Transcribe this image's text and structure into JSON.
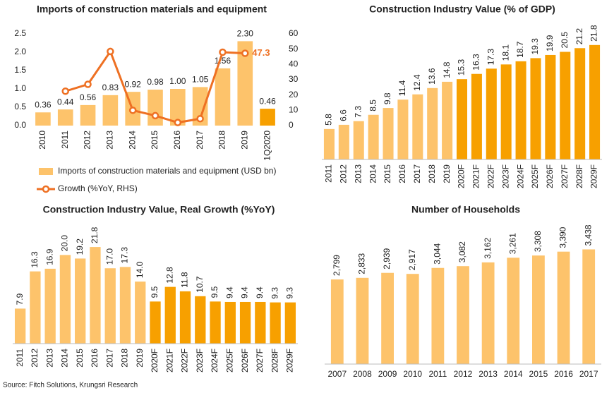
{
  "chart_data": [
    {
      "type": "bar_line",
      "title": "Imports of construction materials and equipment",
      "categories": [
        "2010",
        "2011",
        "2012",
        "2013",
        "2014",
        "2015",
        "2016",
        "2017",
        "2018",
        "2019",
        "1Q2020"
      ],
      "series": [
        {
          "name": "Imports of construction materials and equipment (USD bn)",
          "color": "#fdc36b",
          "colors": [
            "#fdc36b",
            "#fdc36b",
            "#fdc36b",
            "#fdc36b",
            "#fdc36b",
            "#fdc36b",
            "#fdc36b",
            "#fdc36b",
            "#fdc36b",
            "#fdc36b",
            "#f7a000"
          ],
          "values": [
            0.36,
            0.44,
            0.56,
            0.83,
            0.92,
            0.98,
            1.0,
            1.05,
            1.56,
            2.3,
            0.46
          ],
          "value_labels": [
            "0.36",
            "0.44",
            "0.56",
            "0.83",
            "0.92",
            "0.98",
            "1.00",
            "1.05",
            "1.56",
            "2.30",
            "0.46"
          ]
        },
        {
          "name": "Growth (%YoY, RHS)",
          "color": "#ee7023",
          "axis": "y2",
          "values": [
            null,
            22.5,
            27,
            48.5,
            10,
            6.5,
            2,
            4.5,
            48,
            47.3,
            null
          ],
          "value_labels": [
            null,
            null,
            null,
            null,
            null,
            null,
            null,
            null,
            null,
            "47.3",
            null
          ]
        }
      ],
      "ylim": [
        0,
        2.5
      ],
      "yticks": [
        {
          "value": 0,
          "label": "0.0"
        },
        0.5,
        {
          "value": 1,
          "label": "1.0"
        },
        1.5,
        {
          "value": 2,
          "label": "2.0"
        },
        2.5
      ],
      "y2lim": [
        0,
        60
      ],
      "y2ticks": [
        0,
        10,
        20,
        30,
        40,
        50,
        60
      ]
    },
    {
      "type": "bar",
      "title": "Construction Industry Value (% of GDP)",
      "categories": [
        "2011",
        "2012",
        "2013",
        "2014",
        "2015",
        "2016",
        "2017",
        "2018",
        "2019",
        "2020F",
        "2021F",
        "2022F",
        "2023F",
        "2024F",
        "2025F",
        "2026F",
        "2027F",
        "2028F",
        "2029F"
      ],
      "values": [
        5.8,
        6.6,
        7.3,
        8.5,
        9.8,
        11.4,
        12.4,
        13.6,
        14.8,
        15.3,
        16.3,
        17.3,
        18.1,
        18.7,
        19.3,
        19.9,
        20.5,
        21.2,
        21.8
      ],
      "colors": [
        "#fdc36b",
        "#fdc36b",
        "#fdc36b",
        "#fdc36b",
        "#fdc36b",
        "#fdc36b",
        "#fdc36b",
        "#fdc36b",
        "#fdc36b",
        "#f7a000",
        "#f7a000",
        "#f7a000",
        "#f7a000",
        "#f7a000",
        "#f7a000",
        "#f7a000",
        "#f7a000",
        "#f7a000",
        "#f7a000"
      ],
      "ylim": [
        0,
        25
      ]
    },
    {
      "type": "bar",
      "title": "Construction Industry Value, Real Growth (%YoY)",
      "categories": [
        "2011",
        "2012",
        "2013",
        "2014",
        "2015",
        "2016",
        "2017",
        "2018",
        "2019",
        "2020F",
        "2021F",
        "2022F",
        "2023F",
        "2024F",
        "2025F",
        "2026F",
        "2027F",
        "2028F",
        "2029F"
      ],
      "values": [
        7.9,
        16.3,
        16.9,
        20.0,
        19.2,
        21.8,
        17.0,
        17.3,
        14.0,
        9.5,
        12.8,
        11.8,
        10.7,
        9.5,
        9.4,
        9.4,
        9.4,
        9.3,
        9.3
      ],
      "value_labels": [
        "7.9",
        "16.3",
        "16.9",
        "20.0",
        "19.2",
        "21.8",
        "17.0",
        "17.3",
        "14.0",
        "9.5",
        "12.8",
        "11.8",
        "10.7",
        "9.5",
        "9.4",
        "9.4",
        "9.4",
        "9.3",
        "9.3"
      ],
      "colors": [
        "#fdc36b",
        "#fdc36b",
        "#fdc36b",
        "#fdc36b",
        "#fdc36b",
        "#fdc36b",
        "#fdc36b",
        "#fdc36b",
        "#fdc36b",
        "#f7a000",
        "#f7a000",
        "#f7a000",
        "#f7a000",
        "#f7a000",
        "#f7a000",
        "#f7a000",
        "#f7a000",
        "#f7a000",
        "#f7a000"
      ],
      "ylim": [
        0,
        25
      ]
    },
    {
      "type": "bar",
      "title": "Number of Households",
      "categories": [
        "2007",
        "2008",
        "2009",
        "2010",
        "2011",
        "2012",
        "2013",
        "2014",
        "2015",
        "2016",
        "2017"
      ],
      "values": [
        2799,
        2833,
        2939,
        2917,
        3044,
        3082,
        3162,
        3261,
        3308,
        3390,
        3438
      ],
      "value_labels": [
        "2,799",
        "2,833",
        "2,939",
        "2,917",
        "3,044",
        "3,082",
        "3,162",
        "3,261",
        "3,308",
        "3,390",
        "3,438"
      ],
      "color": "#fdc36b",
      "ylim": [
        1000,
        4000
      ]
    }
  ],
  "source": "Source: Fitch Solutions, Krungsri Research"
}
